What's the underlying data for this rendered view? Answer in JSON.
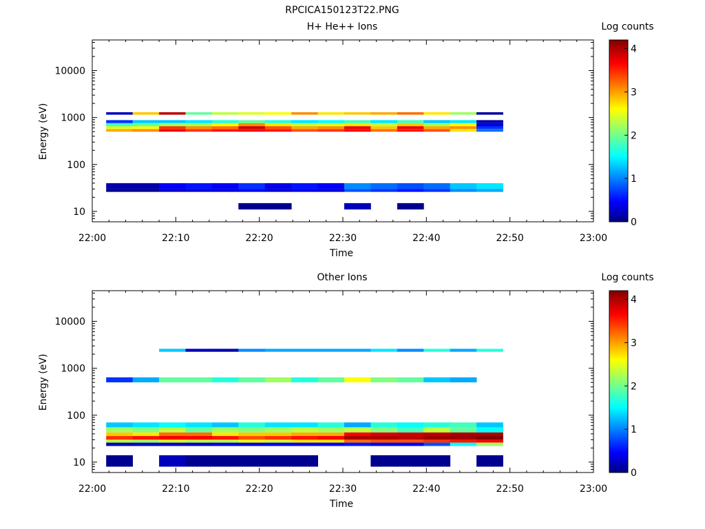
{
  "figure_title": "RPCICA150123T22.PNG",
  "colormap": [
    "#000080",
    "#0000ff",
    "#00ffff",
    "#ffff00",
    "#ff0000",
    "#800000"
  ],
  "chart_data": [
    {
      "type": "heatmap",
      "title": "H+ He++ Ions",
      "xlabel": "Time",
      "ylabel": "Energy (eV)",
      "x_ticks": [
        "22:00",
        "22:10",
        "22:20",
        "22:30",
        "22:40",
        "22:50",
        "23:00"
      ],
      "x_range": [
        "22:00",
        "23:00"
      ],
      "y_scale": "log",
      "y_ticks": [
        "10",
        "100",
        "1000",
        "10000"
      ],
      "y_range": [
        6,
        45000
      ],
      "colorbar": {
        "label": "Log counts",
        "range": [
          0,
          4.2
        ],
        "ticks": [
          "0",
          "1",
          "2",
          "3",
          "4"
        ]
      },
      "time_bins": [
        "22:01:40",
        "22:04:50",
        "22:08:00",
        "22:11:10",
        "22:14:20",
        "22:17:30",
        "22:20:40",
        "22:23:50",
        "22:27:00",
        "22:30:10",
        "22:33:20",
        "22:36:30",
        "22:39:40",
        "22:42:50",
        "22:46:00"
      ],
      "bands": [
        {
          "energy": [
            30,
            40
          ],
          "log_counts": [
            0.3,
            0.3,
            0.8,
            0.9,
            0.8,
            1.0,
            0.7,
            0.9,
            0.8,
            1.3,
            1.2,
            1.1,
            1.2,
            1.5,
            1.6
          ]
        },
        {
          "energy": [
            26,
            30
          ],
          "log_counts": [
            0.1,
            0.1,
            0.5,
            0.6,
            0.6,
            0.8,
            0.6,
            0.7,
            0.6,
            1.1,
            1.0,
            0.9,
            1.0,
            1.3,
            1.4
          ]
        },
        {
          "energy": [
            500,
            570
          ],
          "log_counts": [
            2.8,
            2.9,
            3.5,
            3.2,
            3.3,
            3.4,
            3.3,
            3.1,
            3.2,
            3.4,
            3.0,
            3.3,
            3.1,
            2.6,
            1.2
          ]
        },
        {
          "energy": [
            570,
            660
          ],
          "log_counts": [
            2.4,
            2.5,
            3.2,
            2.9,
            3.0,
            3.7,
            3.1,
            2.8,
            2.9,
            3.5,
            2.7,
            3.5,
            2.8,
            2.9,
            1.0
          ]
        },
        {
          "energy": [
            650,
            760
          ],
          "log_counts": [
            1.9,
            2.0,
            2.2,
            2.2,
            2.5,
            2.9,
            2.6,
            2.3,
            2.4,
            2.6,
            2.3,
            2.7,
            2.2,
            2.5,
            0.6
          ]
        },
        {
          "energy": [
            760,
            880
          ],
          "log_counts": [
            1.0,
            1.5,
            1.5,
            1.6,
            1.8,
            2.0,
            1.8,
            1.6,
            1.7,
            1.9,
            1.6,
            1.9,
            1.5,
            1.6,
            0.3
          ]
        },
        {
          "energy": [
            1150,
            1300
          ],
          "log_counts": [
            0.4,
            2.7,
            3.8,
            2.0,
            2.3,
            2.4,
            2.5,
            2.9,
            2.6,
            2.7,
            2.8,
            3.0,
            2.6,
            2.2,
            0.2
          ]
        },
        {
          "energy": [
            11,
            15
          ],
          "log_counts": [
            null,
            null,
            null,
            null,
            null,
            0.1,
            0.1,
            null,
            null,
            0.4,
            null,
            0.1,
            null,
            null,
            null
          ]
        }
      ]
    },
    {
      "type": "heatmap",
      "title": "Other Ions",
      "xlabel": "Time",
      "ylabel": "Energy (eV)",
      "x_ticks": [
        "22:00",
        "22:10",
        "22:20",
        "22:30",
        "22:40",
        "22:50",
        "23:00"
      ],
      "x_range": [
        "22:00",
        "23:00"
      ],
      "y_scale": "log",
      "y_ticks": [
        "10",
        "100",
        "1000",
        "10000"
      ],
      "y_range": [
        6,
        45000
      ],
      "colorbar": {
        "label": "Log counts",
        "range": [
          0,
          4.2
        ],
        "ticks": [
          "0",
          "1",
          "2",
          "3",
          "4"
        ]
      },
      "time_bins": [
        "22:01:40",
        "22:04:50",
        "22:08:00",
        "22:11:10",
        "22:14:20",
        "22:17:30",
        "22:20:40",
        "22:23:50",
        "22:27:00",
        "22:30:10",
        "22:33:20",
        "22:36:30",
        "22:39:40",
        "22:42:50",
        "22:46:00"
      ],
      "bands": [
        {
          "energy": [
            30,
            36
          ],
          "log_counts": [
            3.2,
            3.3,
            3.4,
            3.4,
            3.3,
            3.1,
            3.2,
            3.3,
            3.4,
            3.9,
            3.9,
            3.8,
            4.0,
            4.0,
            4.2
          ]
        },
        {
          "energy": [
            36,
            43
          ],
          "log_counts": [
            2.7,
            2.6,
            3.0,
            3.0,
            2.6,
            2.7,
            2.7,
            2.8,
            2.8,
            3.4,
            3.6,
            3.7,
            3.8,
            3.9,
            3.9
          ]
        },
        {
          "energy": [
            26,
            30
          ],
          "log_counts": [
            2.3,
            2.2,
            2.4,
            2.3,
            2.3,
            2.5,
            2.4,
            2.6,
            2.6,
            3.0,
            3.1,
            3.1,
            3.2,
            3.3,
            3.4
          ]
        },
        {
          "energy": [
            43,
            55
          ],
          "log_counts": [
            2.2,
            2.1,
            2.3,
            2.0,
            2.2,
            2.1,
            2.2,
            2.3,
            2.2,
            2.3,
            2.1,
            1.9,
            2.3,
            2.0,
            1.7
          ]
        },
        {
          "energy": [
            55,
            70
          ],
          "log_counts": [
            1.5,
            1.6,
            1.7,
            1.6,
            1.5,
            1.8,
            1.6,
            1.6,
            1.8,
            1.4,
            1.8,
            1.7,
            1.8,
            1.9,
            1.5
          ]
        },
        {
          "energy": [
            22,
            26
          ],
          "log_counts": [
            0.4,
            0.5,
            0.6,
            0.5,
            0.7,
            0.7,
            0.8,
            0.8,
            0.8,
            0.9,
            0.7,
            0.8,
            1.1,
            1.7,
            2.2
          ]
        },
        {
          "energy": [
            500,
            640
          ],
          "log_counts": [
            1.0,
            1.4,
            2.0,
            2.0,
            1.8,
            2.0,
            2.2,
            1.8,
            2.0,
            2.5,
            2.1,
            2.0,
            1.5,
            1.4,
            null
          ]
        },
        {
          "energy": [
            2250,
            2600
          ],
          "log_counts": [
            null,
            null,
            1.5,
            0.4,
            0.3,
            1.3,
            1.4,
            1.4,
            1.4,
            1.4,
            1.6,
            1.3,
            1.8,
            1.4,
            1.8
          ]
        },
        {
          "energy": [
            8,
            14
          ],
          "log_counts": [
            0.1,
            null,
            0.4,
            0.1,
            0.1,
            0.1,
            0.1,
            0.1,
            null,
            null,
            0.1,
            0.1,
            0.1,
            null,
            0.1
          ]
        }
      ]
    }
  ]
}
